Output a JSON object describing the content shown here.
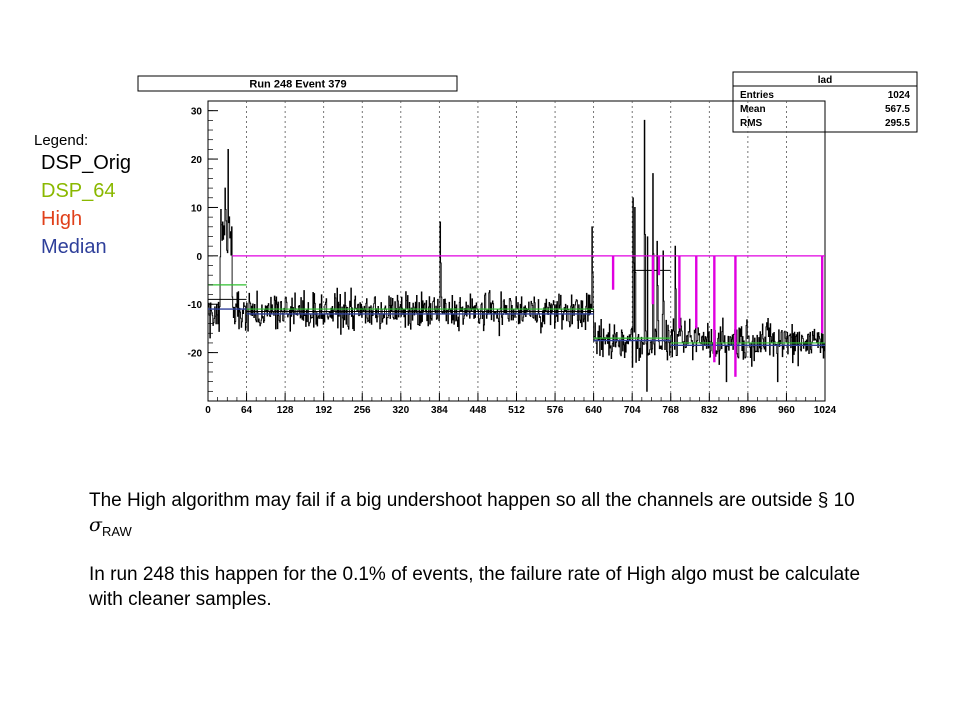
{
  "legend": {
    "title": "Legend:",
    "items": [
      {
        "label": "DSP_Orig",
        "color": "#000000"
      },
      {
        "label": "DSP_64",
        "color": "#8ab800"
      },
      {
        "label": "High",
        "color": "#e0401a"
      },
      {
        "label": "Median",
        "color": "#2e3f9a"
      }
    ]
  },
  "stats_box": {
    "name": "lad",
    "rows": [
      {
        "label": "Entries",
        "value": "1024"
      },
      {
        "label": "Mean",
        "value": "567.5"
      },
      {
        "label": "RMS",
        "value": "295.5"
      }
    ]
  },
  "notes": {
    "line1_text": "The High algorithm may fail if a big undershoot happen so all the channels are outside § 10 ",
    "line1_sigma": "σ",
    "line1_sub": "RAW",
    "line2": "In run 248 this happen for the 0.1%  of events, the failure rate of High algo must be calculate with cleaner samples."
  },
  "chart_data": {
    "type": "line",
    "title": "Run 248 Event 379",
    "xlim": [
      0,
      1024
    ],
    "ylim": [
      -30,
      32
    ],
    "xticks": [
      0,
      64,
      128,
      192,
      256,
      320,
      384,
      448,
      512,
      576,
      640,
      704,
      768,
      832,
      896,
      960,
      1024
    ],
    "yticks": [
      30,
      20,
      10,
      0,
      -10,
      -20
    ],
    "grid_x": true,
    "colors": {
      "signal": "#000000",
      "dsp64": "#30c030",
      "median": "#2e3f9a",
      "magenta": "#e000e0"
    },
    "segments": [
      {
        "start": 0,
        "end": 20,
        "level": -13,
        "noise": 3
      },
      {
        "start": 20,
        "end": 40,
        "level": 3,
        "noise": 8
      },
      {
        "start": 40,
        "end": 640,
        "level": -11.5,
        "noise": 3
      },
      {
        "start": 640,
        "end": 1024,
        "level": -17.5,
        "noise": 3.5
      }
    ],
    "spikes": [
      {
        "x": 24,
        "y": 7
      },
      {
        "x": 28,
        "y": 14
      },
      {
        "x": 33,
        "y": 22
      },
      {
        "x": 37,
        "y": 5
      },
      {
        "x": 385,
        "y": 7
      },
      {
        "x": 637,
        "y": 6
      },
      {
        "x": 705,
        "y": 12
      },
      {
        "x": 708,
        "y": 10
      },
      {
        "x": 724,
        "y": 28
      },
      {
        "x": 728,
        "y": 25
      },
      {
        "x": 738,
        "y": 17
      },
      {
        "x": 745,
        "y": 3
      },
      {
        "x": 755,
        "y": 1
      },
      {
        "x": 775,
        "y": 2
      }
    ],
    "dips": [
      {
        "x": 704,
        "y": -23
      },
      {
        "x": 710,
        "y": -22
      },
      {
        "x": 728,
        "y": -28
      },
      {
        "x": 860,
        "y": -26
      },
      {
        "x": 945,
        "y": -26
      }
    ],
    "high_level": 0,
    "high_range": [
      40,
      1024
    ],
    "high_drops": [
      {
        "x": 672,
        "y": -7
      },
      {
        "x": 738,
        "y": -10
      },
      {
        "x": 748,
        "y": -4
      },
      {
        "x": 782,
        "y": -15
      },
      {
        "x": 810,
        "y": -15
      },
      {
        "x": 840,
        "y": -22
      },
      {
        "x": 875,
        "y": -25
      },
      {
        "x": 1019,
        "y": -16
      }
    ],
    "dsp64_steps": [
      {
        "start": 0,
        "end": 64,
        "level": -6
      },
      {
        "start": 64,
        "end": 640,
        "level": -11
      },
      {
        "start": 640,
        "end": 768,
        "level": -17
      },
      {
        "start": 768,
        "end": 1024,
        "level": -18
      }
    ],
    "median_steps": [
      {
        "start": 0,
        "end": 64,
        "level": -11
      },
      {
        "start": 64,
        "end": 640,
        "level": -12
      },
      {
        "start": 640,
        "end": 768,
        "level": -17.5
      },
      {
        "start": 768,
        "end": 1024,
        "level": -18.5
      }
    ],
    "black_steps": [
      {
        "start": 0,
        "end": 64,
        "level": -9
      },
      {
        "start": 64,
        "end": 640,
        "level": -11.5
      },
      {
        "start": 640,
        "end": 704,
        "level": -17
      },
      {
        "start": 704,
        "end": 768,
        "level": -3
      }
    ]
  }
}
